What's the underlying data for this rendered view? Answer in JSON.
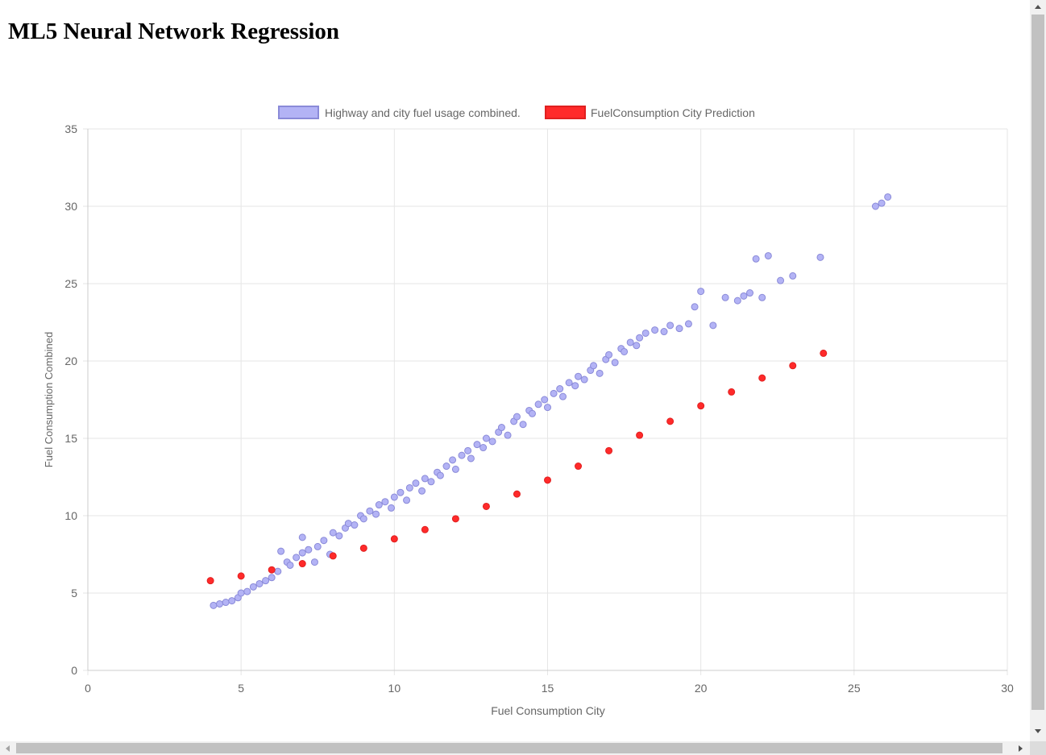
{
  "page": {
    "title": "ML5 Neural Network Regression"
  },
  "chart_data": {
    "type": "scatter",
    "title": "",
    "xlabel": "Fuel Consumption City",
    "ylabel": "Fuel Consumption Combined",
    "xlim": [
      0,
      30
    ],
    "ylim": [
      0,
      35
    ],
    "xticks": [
      0,
      5,
      10,
      15,
      20,
      25,
      30
    ],
    "yticks": [
      0,
      5,
      10,
      15,
      20,
      25,
      30,
      35
    ],
    "grid": true,
    "legend_position": "top-center",
    "series": [
      {
        "name": "Highway and city fuel usage combined.",
        "color": "#b3b3f5",
        "border": "#8a8ad8",
        "points": [
          [
            4.1,
            4.2
          ],
          [
            4.3,
            4.3
          ],
          [
            4.5,
            4.4
          ],
          [
            4.7,
            4.5
          ],
          [
            4.9,
            4.7
          ],
          [
            5.0,
            5.0
          ],
          [
            5.2,
            5.1
          ],
          [
            5.4,
            5.4
          ],
          [
            5.6,
            5.6
          ],
          [
            5.8,
            5.8
          ],
          [
            6.0,
            6.0
          ],
          [
            6.2,
            6.4
          ],
          [
            6.3,
            7.7
          ],
          [
            6.5,
            7.0
          ],
          [
            6.6,
            6.8
          ],
          [
            6.8,
            7.3
          ],
          [
            7.0,
            7.6
          ],
          [
            7.0,
            8.6
          ],
          [
            7.2,
            7.8
          ],
          [
            7.4,
            7.0
          ],
          [
            7.5,
            8.0
          ],
          [
            7.7,
            8.4
          ],
          [
            7.9,
            7.5
          ],
          [
            8.0,
            8.9
          ],
          [
            8.2,
            8.7
          ],
          [
            8.4,
            9.2
          ],
          [
            8.5,
            9.5
          ],
          [
            8.7,
            9.4
          ],
          [
            8.9,
            10.0
          ],
          [
            9.0,
            9.8
          ],
          [
            9.2,
            10.3
          ],
          [
            9.4,
            10.1
          ],
          [
            9.5,
            10.7
          ],
          [
            9.7,
            10.9
          ],
          [
            9.9,
            10.5
          ],
          [
            10.0,
            11.2
          ],
          [
            10.2,
            11.5
          ],
          [
            10.4,
            11.0
          ],
          [
            10.5,
            11.8
          ],
          [
            10.7,
            12.1
          ],
          [
            10.9,
            11.6
          ],
          [
            11.0,
            12.4
          ],
          [
            11.2,
            12.2
          ],
          [
            11.4,
            12.8
          ],
          [
            11.5,
            12.6
          ],
          [
            11.7,
            13.2
          ],
          [
            11.9,
            13.6
          ],
          [
            12.0,
            13.0
          ],
          [
            12.2,
            13.9
          ],
          [
            12.4,
            14.2
          ],
          [
            12.5,
            13.7
          ],
          [
            12.7,
            14.6
          ],
          [
            12.9,
            14.4
          ],
          [
            13.0,
            15.0
          ],
          [
            13.2,
            14.8
          ],
          [
            13.4,
            15.4
          ],
          [
            13.5,
            15.7
          ],
          [
            13.7,
            15.2
          ],
          [
            13.9,
            16.1
          ],
          [
            14.0,
            16.4
          ],
          [
            14.2,
            15.9
          ],
          [
            14.4,
            16.8
          ],
          [
            14.5,
            16.6
          ],
          [
            14.7,
            17.2
          ],
          [
            14.9,
            17.5
          ],
          [
            15.0,
            17.0
          ],
          [
            15.2,
            17.9
          ],
          [
            15.4,
            18.2
          ],
          [
            15.5,
            17.7
          ],
          [
            15.7,
            18.6
          ],
          [
            15.9,
            18.4
          ],
          [
            16.0,
            19.0
          ],
          [
            16.2,
            18.8
          ],
          [
            16.4,
            19.4
          ],
          [
            16.5,
            19.7
          ],
          [
            16.7,
            19.2
          ],
          [
            16.9,
            20.1
          ],
          [
            17.0,
            20.4
          ],
          [
            17.2,
            19.9
          ],
          [
            17.4,
            20.8
          ],
          [
            17.5,
            20.6
          ],
          [
            17.7,
            21.2
          ],
          [
            17.9,
            21.0
          ],
          [
            18.0,
            21.5
          ],
          [
            18.2,
            21.8
          ],
          [
            18.5,
            22.0
          ],
          [
            18.8,
            21.9
          ],
          [
            19.0,
            22.3
          ],
          [
            19.3,
            22.1
          ],
          [
            19.6,
            22.4
          ],
          [
            19.8,
            23.5
          ],
          [
            20.0,
            24.5
          ],
          [
            20.4,
            22.3
          ],
          [
            20.8,
            24.1
          ],
          [
            21.2,
            23.9
          ],
          [
            21.4,
            24.2
          ],
          [
            21.6,
            24.4
          ],
          [
            21.8,
            26.6
          ],
          [
            22.0,
            24.1
          ],
          [
            22.2,
            26.8
          ],
          [
            22.6,
            25.2
          ],
          [
            23.0,
            25.5
          ],
          [
            23.9,
            26.7
          ],
          [
            25.7,
            30.0
          ],
          [
            25.9,
            30.2
          ],
          [
            26.1,
            30.6
          ]
        ]
      },
      {
        "name": "FuelConsumption City Prediction",
        "color": "#ff2a2a",
        "border": "#e02020",
        "points": [
          [
            4,
            5.8
          ],
          [
            5,
            6.1
          ],
          [
            6,
            6.5
          ],
          [
            7,
            6.9
          ],
          [
            8,
            7.4
          ],
          [
            9,
            7.9
          ],
          [
            10,
            8.5
          ],
          [
            11,
            9.1
          ],
          [
            12,
            9.8
          ],
          [
            13,
            10.6
          ],
          [
            14,
            11.4
          ],
          [
            15,
            12.3
          ],
          [
            16,
            13.2
          ],
          [
            17,
            14.2
          ],
          [
            18,
            15.2
          ],
          [
            19,
            16.1
          ],
          [
            20,
            17.1
          ],
          [
            21,
            18.0
          ],
          [
            22,
            18.9
          ],
          [
            23,
            19.7
          ],
          [
            24,
            20.5
          ]
        ]
      }
    ]
  }
}
